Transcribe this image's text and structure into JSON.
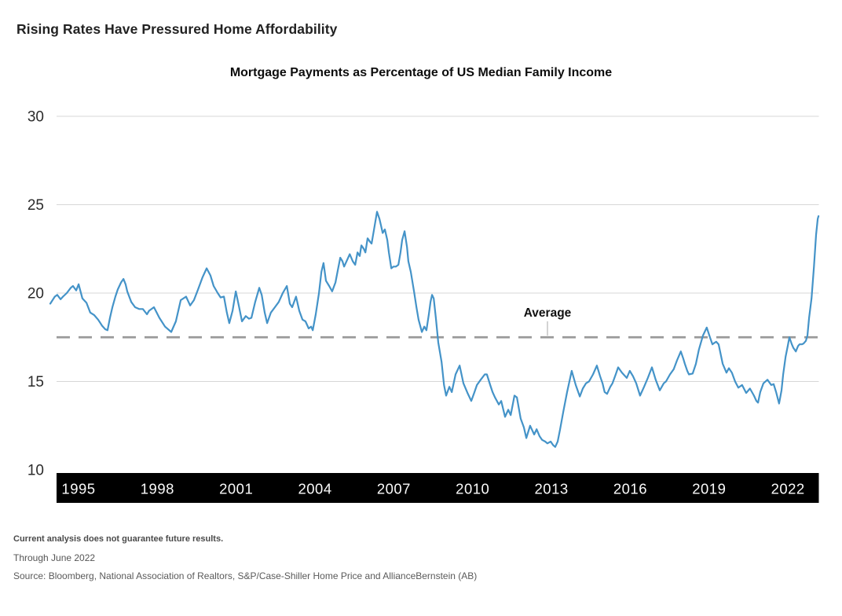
{
  "page": {
    "heading": "Rising Rates Have Pressured Home Affordability",
    "footnote_bold": "Current analysis does not guarantee future results.",
    "footnote_period": "Through June 2022",
    "footnote_source": "Source: Bloomberg, National Association of Realtors, S&P/Case-Shiller Home Price and AllianceBernstein (AB)"
  },
  "chart_data": {
    "type": "line",
    "title": "Mortgage Payments as Percentage of US Median Family Income",
    "xlabel": "",
    "ylabel": "",
    "ylim": [
      10,
      30
    ],
    "x_range_years": [
      1994.0,
      2022.45
    ],
    "y_ticks": [
      30,
      25,
      20,
      15,
      10
    ],
    "gridline_values": [
      30,
      25,
      20,
      15
    ],
    "x_tick_labels": [
      "1995",
      "1998",
      "2001",
      "2004",
      "2007",
      "2010",
      "2013",
      "2016",
      "2019",
      "2022"
    ],
    "grid": "horizontal-only",
    "legend": "none",
    "average_line": {
      "label": "Average",
      "value": 17.5,
      "style": "dashed"
    },
    "colors": {
      "line": "#4493c8",
      "average_dash": "#9a9a9a",
      "average_callout": "#c4c4c4",
      "gridline": "#d7d7d7",
      "axis_band_bg": "#000000",
      "axis_band_text": "#fafafa"
    },
    "series": [
      {
        "name": "Mortgage payments as % of US median family income",
        "points": [
          [
            1994.0,
            19.4
          ],
          [
            1994.17,
            19.8
          ],
          [
            1994.26,
            19.9
          ],
          [
            1994.38,
            19.65
          ],
          [
            1994.47,
            19.8
          ],
          [
            1994.61,
            20.0
          ],
          [
            1994.76,
            20.3
          ],
          [
            1994.84,
            20.4
          ],
          [
            1994.96,
            20.15
          ],
          [
            1995.05,
            20.5
          ],
          [
            1995.19,
            19.7
          ],
          [
            1995.34,
            19.45
          ],
          [
            1995.48,
            18.9
          ],
          [
            1995.63,
            18.75
          ],
          [
            1995.77,
            18.5
          ],
          [
            1995.92,
            18.15
          ],
          [
            1996.04,
            17.95
          ],
          [
            1996.12,
            17.9
          ],
          [
            1996.21,
            18.6
          ],
          [
            1996.3,
            19.2
          ],
          [
            1996.41,
            19.8
          ],
          [
            1996.5,
            20.2
          ],
          [
            1996.62,
            20.6
          ],
          [
            1996.71,
            20.8
          ],
          [
            1996.79,
            20.5
          ],
          [
            1996.85,
            20.1
          ],
          [
            1997.0,
            19.5
          ],
          [
            1997.14,
            19.2
          ],
          [
            1997.29,
            19.1
          ],
          [
            1997.43,
            19.1
          ],
          [
            1997.58,
            18.8
          ],
          [
            1997.66,
            19.0
          ],
          [
            1997.84,
            19.2
          ],
          [
            1998.04,
            18.6
          ],
          [
            1998.25,
            18.1
          ],
          [
            1998.48,
            17.8
          ],
          [
            1998.65,
            18.4
          ],
          [
            1998.83,
            19.6
          ],
          [
            1999.03,
            19.8
          ],
          [
            1999.18,
            19.3
          ],
          [
            1999.32,
            19.6
          ],
          [
            1999.47,
            20.2
          ],
          [
            1999.64,
            20.9
          ],
          [
            1999.79,
            21.4
          ],
          [
            1999.93,
            21.0
          ],
          [
            2000.05,
            20.4
          ],
          [
            2000.2,
            20.0
          ],
          [
            2000.31,
            19.75
          ],
          [
            2000.43,
            19.8
          ],
          [
            2000.54,
            18.9
          ],
          [
            2000.63,
            18.3
          ],
          [
            2000.75,
            19.0
          ],
          [
            2000.87,
            20.1
          ],
          [
            2000.98,
            19.3
          ],
          [
            2001.1,
            18.4
          ],
          [
            2001.24,
            18.7
          ],
          [
            2001.36,
            18.55
          ],
          [
            2001.45,
            18.6
          ],
          [
            2001.59,
            19.5
          ],
          [
            2001.74,
            20.3
          ],
          [
            2001.83,
            19.9
          ],
          [
            2001.94,
            18.9
          ],
          [
            2002.03,
            18.3
          ],
          [
            2002.17,
            18.9
          ],
          [
            2002.32,
            19.2
          ],
          [
            2002.46,
            19.5
          ],
          [
            2002.61,
            20.0
          ],
          [
            2002.76,
            20.4
          ],
          [
            2002.87,
            19.4
          ],
          [
            2002.96,
            19.2
          ],
          [
            2003.1,
            19.8
          ],
          [
            2003.22,
            19.0
          ],
          [
            2003.34,
            18.5
          ],
          [
            2003.45,
            18.4
          ],
          [
            2003.57,
            18.0
          ],
          [
            2003.66,
            18.1
          ],
          [
            2003.72,
            17.9
          ],
          [
            2003.83,
            18.8
          ],
          [
            2003.95,
            20.0
          ],
          [
            2004.04,
            21.2
          ],
          [
            2004.12,
            21.7
          ],
          [
            2004.21,
            20.7
          ],
          [
            2004.33,
            20.4
          ],
          [
            2004.44,
            20.1
          ],
          [
            2004.56,
            20.6
          ],
          [
            2004.65,
            21.3
          ],
          [
            2004.74,
            22.0
          ],
          [
            2004.82,
            21.8
          ],
          [
            2004.88,
            21.5
          ],
          [
            2005.0,
            21.9
          ],
          [
            2005.09,
            22.2
          ],
          [
            2005.2,
            21.8
          ],
          [
            2005.29,
            21.6
          ],
          [
            2005.38,
            22.3
          ],
          [
            2005.46,
            22.1
          ],
          [
            2005.52,
            22.7
          ],
          [
            2005.61,
            22.5
          ],
          [
            2005.67,
            22.3
          ],
          [
            2005.75,
            23.1
          ],
          [
            2005.84,
            22.9
          ],
          [
            2005.9,
            22.8
          ],
          [
            2005.99,
            23.6
          ],
          [
            2006.1,
            24.6
          ],
          [
            2006.19,
            24.2
          ],
          [
            2006.25,
            23.8
          ],
          [
            2006.31,
            23.4
          ],
          [
            2006.39,
            23.6
          ],
          [
            2006.48,
            23.0
          ],
          [
            2006.54,
            22.3
          ],
          [
            2006.63,
            21.4
          ],
          [
            2006.71,
            21.5
          ],
          [
            2006.8,
            21.5
          ],
          [
            2006.89,
            21.6
          ],
          [
            2006.97,
            22.3
          ],
          [
            2007.03,
            23.0
          ],
          [
            2007.12,
            23.5
          ],
          [
            2007.21,
            22.6
          ],
          [
            2007.26,
            21.8
          ],
          [
            2007.35,
            21.2
          ],
          [
            2007.47,
            20.1
          ],
          [
            2007.56,
            19.2
          ],
          [
            2007.64,
            18.5
          ],
          [
            2007.76,
            17.8
          ],
          [
            2007.85,
            18.1
          ],
          [
            2007.93,
            17.9
          ],
          [
            2008.02,
            18.8
          ],
          [
            2008.08,
            19.5
          ],
          [
            2008.14,
            19.9
          ],
          [
            2008.2,
            19.7
          ],
          [
            2008.28,
            18.6
          ],
          [
            2008.37,
            17.2
          ],
          [
            2008.49,
            16.1
          ],
          [
            2008.58,
            14.8
          ],
          [
            2008.66,
            14.2
          ],
          [
            2008.78,
            14.7
          ],
          [
            2008.87,
            14.4
          ],
          [
            2009.01,
            15.4
          ],
          [
            2009.16,
            15.9
          ],
          [
            2009.3,
            14.9
          ],
          [
            2009.45,
            14.35
          ],
          [
            2009.59,
            13.9
          ],
          [
            2009.71,
            14.4
          ],
          [
            2009.8,
            14.8
          ],
          [
            2009.94,
            15.1
          ],
          [
            2010.09,
            15.4
          ],
          [
            2010.17,
            15.4
          ],
          [
            2010.29,
            14.8
          ],
          [
            2010.38,
            14.4
          ],
          [
            2010.47,
            14.1
          ],
          [
            2010.61,
            13.7
          ],
          [
            2010.7,
            13.9
          ],
          [
            2010.84,
            13.0
          ],
          [
            2010.96,
            13.4
          ],
          [
            2011.05,
            13.1
          ],
          [
            2011.19,
            14.2
          ],
          [
            2011.28,
            14.1
          ],
          [
            2011.42,
            12.9
          ],
          [
            2011.54,
            12.4
          ],
          [
            2011.63,
            11.8
          ],
          [
            2011.77,
            12.5
          ],
          [
            2011.92,
            12.0
          ],
          [
            2012.01,
            12.3
          ],
          [
            2012.12,
            11.9
          ],
          [
            2012.21,
            11.7
          ],
          [
            2012.33,
            11.6
          ],
          [
            2012.41,
            11.5
          ],
          [
            2012.53,
            11.6
          ],
          [
            2012.62,
            11.4
          ],
          [
            2012.7,
            11.3
          ],
          [
            2012.79,
            11.6
          ],
          [
            2012.88,
            12.3
          ],
          [
            2013.0,
            13.3
          ],
          [
            2013.14,
            14.4
          ],
          [
            2013.31,
            15.6
          ],
          [
            2013.46,
            14.8
          ],
          [
            2013.61,
            14.15
          ],
          [
            2013.72,
            14.6
          ],
          [
            2013.84,
            14.9
          ],
          [
            2013.95,
            15.0
          ],
          [
            2014.1,
            15.4
          ],
          [
            2014.24,
            15.9
          ],
          [
            2014.36,
            15.3
          ],
          [
            2014.45,
            14.9
          ],
          [
            2014.53,
            14.4
          ],
          [
            2014.62,
            14.3
          ],
          [
            2014.74,
            14.7
          ],
          [
            2014.82,
            14.9
          ],
          [
            2014.94,
            15.4
          ],
          [
            2015.03,
            15.8
          ],
          [
            2015.17,
            15.5
          ],
          [
            2015.35,
            15.2
          ],
          [
            2015.46,
            15.6
          ],
          [
            2015.58,
            15.3
          ],
          [
            2015.7,
            14.9
          ],
          [
            2015.84,
            14.2
          ],
          [
            2015.99,
            14.7
          ],
          [
            2016.13,
            15.2
          ],
          [
            2016.28,
            15.8
          ],
          [
            2016.42,
            15.1
          ],
          [
            2016.57,
            14.5
          ],
          [
            2016.72,
            14.9
          ],
          [
            2016.8,
            15.0
          ],
          [
            2016.95,
            15.4
          ],
          [
            2017.09,
            15.7
          ],
          [
            2017.21,
            16.2
          ],
          [
            2017.35,
            16.7
          ],
          [
            2017.44,
            16.3
          ],
          [
            2017.5,
            16.0
          ],
          [
            2017.59,
            15.6
          ],
          [
            2017.65,
            15.4
          ],
          [
            2017.79,
            15.45
          ],
          [
            2017.91,
            16.0
          ],
          [
            2018.02,
            16.8
          ],
          [
            2018.17,
            17.6
          ],
          [
            2018.31,
            18.05
          ],
          [
            2018.43,
            17.5
          ],
          [
            2018.52,
            17.1
          ],
          [
            2018.66,
            17.25
          ],
          [
            2018.75,
            17.1
          ],
          [
            2018.9,
            16.0
          ],
          [
            2019.04,
            15.5
          ],
          [
            2019.13,
            15.75
          ],
          [
            2019.24,
            15.5
          ],
          [
            2019.36,
            15.0
          ],
          [
            2019.48,
            14.65
          ],
          [
            2019.62,
            14.8
          ],
          [
            2019.77,
            14.35
          ],
          [
            2019.91,
            14.6
          ],
          [
            2020.06,
            14.2
          ],
          [
            2020.15,
            13.9
          ],
          [
            2020.21,
            13.8
          ],
          [
            2020.29,
            14.4
          ],
          [
            2020.41,
            14.9
          ],
          [
            2020.56,
            15.1
          ],
          [
            2020.7,
            14.8
          ],
          [
            2020.79,
            14.85
          ],
          [
            2020.88,
            14.4
          ],
          [
            2020.99,
            13.75
          ],
          [
            2021.08,
            14.5
          ],
          [
            2021.14,
            15.4
          ],
          [
            2021.23,
            16.4
          ],
          [
            2021.31,
            17.0
          ],
          [
            2021.37,
            17.5
          ],
          [
            2021.46,
            17.1
          ],
          [
            2021.52,
            16.9
          ],
          [
            2021.61,
            16.7
          ],
          [
            2021.69,
            17.0
          ],
          [
            2021.75,
            17.1
          ],
          [
            2021.84,
            17.1
          ],
          [
            2021.9,
            17.15
          ],
          [
            2021.98,
            17.3
          ],
          [
            2022.04,
            17.6
          ],
          [
            2022.1,
            18.6
          ],
          [
            2022.19,
            19.7
          ],
          [
            2022.28,
            21.5
          ],
          [
            2022.36,
            23.3
          ],
          [
            2022.42,
            24.2
          ],
          [
            2022.45,
            24.35
          ]
        ]
      }
    ]
  }
}
